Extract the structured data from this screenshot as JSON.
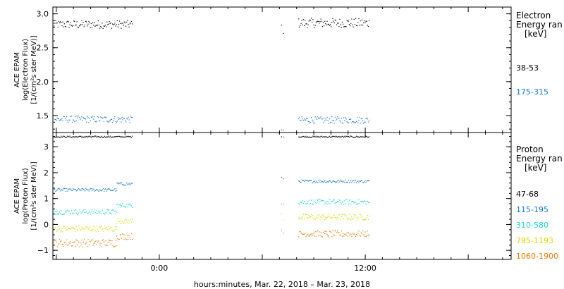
{
  "chart_data": [
    {
      "type": "scatter",
      "panel": "electron",
      "ylabel_lines": [
        "ACE EPAM",
        "log(Electron Flux)",
        "[1/(cm²s ster MeV)]"
      ],
      "ylim": [
        1.25,
        3.1
      ],
      "yticks": [
        1.5,
        2.0,
        2.5,
        3.0
      ],
      "ytick_labels": [
        "1.5",
        "2.0",
        "2.5",
        "3.0"
      ],
      "legend_title_lines": [
        "Electron",
        "Energy ran"
      ],
      "legend_unit": "[keV]",
      "series": [
        {
          "name": "38-53",
          "color": "#000000",
          "segments": [
            {
              "x_start": -6.2,
              "x_end": -1.6,
              "mean": 2.85,
              "amp": 0.06
            },
            {
              "x_start": 7.1,
              "x_end": 7.2,
              "mean": 2.8,
              "amp": 0.1
            },
            {
              "x_start": 8.1,
              "x_end": 12.2,
              "mean": 2.87,
              "amp": 0.07
            }
          ]
        },
        {
          "name": "175-315",
          "color": "#1878d0",
          "segments": [
            {
              "x_start": -6.2,
              "x_end": -1.6,
              "mean": 1.45,
              "amp": 0.05
            },
            {
              "x_start": 7.1,
              "x_end": 7.2,
              "mean": 1.35,
              "amp": 0.1
            },
            {
              "x_start": 8.1,
              "x_end": 12.2,
              "mean": 1.44,
              "amp": 0.05
            }
          ]
        }
      ]
    },
    {
      "type": "scatter",
      "panel": "proton",
      "ylabel_lines": [
        "ACE EPAM",
        "log(Proton Flux)",
        "[1/(cm²s ster MeV)]"
      ],
      "ylim": [
        -1.35,
        3.55
      ],
      "yticks": [
        -1,
        0,
        1,
        2,
        3
      ],
      "ytick_labels": [
        "−1",
        "0",
        "1",
        "2",
        "3"
      ],
      "legend_title_lines": [
        "Proton",
        "Energy ran"
      ],
      "legend_unit": "[keV]",
      "series": [
        {
          "name": "47-68",
          "color": "#000000",
          "segments": [
            {
              "x_start": -6.2,
              "x_end": -1.6,
              "mean": 3.4,
              "amp": 0.03
            },
            {
              "x_start": 7.1,
              "x_end": 7.2,
              "mean": 3.42,
              "amp": 0.03
            },
            {
              "x_start": 8.1,
              "x_end": 12.2,
              "mean": 3.4,
              "amp": 0.03
            }
          ]
        },
        {
          "name": "115-195",
          "color": "#1878d0",
          "segments": [
            {
              "x_start": -6.2,
              "x_end": -2.5,
              "mean": 1.35,
              "amp": 0.06
            },
            {
              "x_start": -2.5,
              "x_end": -1.6,
              "mean": 1.58,
              "amp": 0.06
            },
            {
              "x_start": 7.1,
              "x_end": 7.2,
              "mean": 1.8,
              "amp": 0.04
            },
            {
              "x_start": 8.1,
              "x_end": 12.2,
              "mean": 1.68,
              "amp": 0.06
            }
          ]
        },
        {
          "name": "310-580",
          "color": "#22d0d0",
          "segments": [
            {
              "x_start": -6.2,
              "x_end": -2.5,
              "mean": 0.5,
              "amp": 0.1
            },
            {
              "x_start": -2.5,
              "x_end": -1.6,
              "mean": 0.75,
              "amp": 0.08
            },
            {
              "x_start": 7.1,
              "x_end": 7.2,
              "mean": 0.9,
              "amp": 0.15
            },
            {
              "x_start": 8.1,
              "x_end": 12.2,
              "mean": 0.88,
              "amp": 0.1
            }
          ]
        },
        {
          "name": "795-1193",
          "color": "#d8d800",
          "segments": [
            {
              "x_start": -6.2,
              "x_end": -2.5,
              "mean": -0.15,
              "amp": 0.12
            },
            {
              "x_start": -2.5,
              "x_end": -1.6,
              "mean": 0.15,
              "amp": 0.1
            },
            {
              "x_start": 7.1,
              "x_end": 7.2,
              "mean": 0.35,
              "amp": 0.2
            },
            {
              "x_start": 8.1,
              "x_end": 12.2,
              "mean": 0.3,
              "amp": 0.12
            }
          ]
        },
        {
          "name": "1060-1900",
          "color": "#e87800",
          "segments": [
            {
              "x_start": -6.2,
              "x_end": -2.5,
              "mean": -0.7,
              "amp": 0.15
            },
            {
              "x_start": -2.5,
              "x_end": -1.6,
              "mean": -0.45,
              "amp": 0.12
            },
            {
              "x_start": 7.1,
              "x_end": 7.2,
              "mean": -0.2,
              "amp": 0.2
            },
            {
              "x_start": 8.1,
              "x_end": 12.2,
              "mean": -0.35,
              "amp": 0.12
            }
          ]
        }
      ]
    }
  ],
  "x_axis": {
    "xlim": [
      -6.2,
      20.5
    ],
    "ticks": [
      0,
      12
    ],
    "tick_labels": [
      "0:00",
      "12:00"
    ],
    "minor_step": 1,
    "xlabel": "hours:minutes, Mar. 22, 2018 – Mar. 23, 2018"
  }
}
